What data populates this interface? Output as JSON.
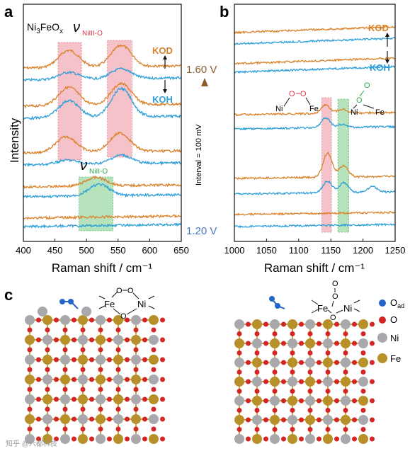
{
  "colors": {
    "kod": "#d9822b",
    "koh": "#2e9fd8",
    "red_band": "#e8909a",
    "green_band": "#7fd08a",
    "nickel": "#a9a9ad",
    "iron": "#b8902a",
    "oxygen": "#d42424",
    "oxygen_ad": "#2464c8",
    "arrow_top": "#8a5a2b",
    "arrow_bottom": "#4a77c8"
  },
  "panels": {
    "a": {
      "letter": "a",
      "sample_label": "Ni3FeOx",
      "nu_label_top": "ν",
      "nu_sub_top": "NiIII-O",
      "nu_label_bottom": "ν",
      "nu_sub_bottom": "NiII-O",
      "kod_label": "KOD",
      "koh_label": "KOH"
    },
    "b": {
      "letter": "b",
      "kod_label": "KOD",
      "koh_label": "KOH",
      "struct_left": {
        "ni": "Ni",
        "o1": "O",
        "o2": "O",
        "fe": "Fe"
      },
      "struct_right": {
        "ni": "Ni",
        "o1": "O",
        "o2": "O",
        "fe": "Fe"
      }
    },
    "c": {
      "letter": "c",
      "struct_left": {
        "fe": "Fe",
        "ni": "Ni",
        "o1": "O",
        "o2": "O",
        "o3": "O"
      },
      "struct_right": {
        "fe": "Fe",
        "ni": "Ni",
        "o1": "O",
        "o2": "O",
        "o3": "O"
      },
      "legend": [
        {
          "label": "Oad",
          "main": "O",
          "sub": "ad",
          "color_key": "oxygen_ad"
        },
        {
          "label": "O",
          "main": "O",
          "sub": "",
          "color_key": "oxygen"
        },
        {
          "label": "Ni",
          "main": "Ni",
          "sub": "",
          "color_key": "nickel"
        },
        {
          "label": "Fe",
          "main": "Fe",
          "sub": "",
          "color_key": "iron"
        }
      ]
    }
  },
  "middle": {
    "top_potential": "1.60 V",
    "bottom_potential": "1.20 V",
    "interval_label": "Interval = 100 mV"
  },
  "watermark": "知乎 @六都科技",
  "chart_data": [
    {
      "type": "line",
      "panel": "a",
      "xlabel": "Raman shift / cm⁻¹",
      "ylabel": "Intensity",
      "xlim": [
        400,
        650
      ],
      "xticks": [
        400,
        450,
        500,
        550,
        600,
        650
      ],
      "highlight_bands": [
        {
          "from": 455,
          "to": 492,
          "color": "red"
        },
        {
          "from": 533,
          "to": 572,
          "color": "red"
        },
        {
          "from": 488,
          "to": 542,
          "color": "green"
        }
      ],
      "series": [
        {
          "name": "KOD",
          "potential_V": 1.6,
          "shape": "double",
          "base": 96,
          "peaks": [
            [
              472,
              24
            ],
            [
              555,
              30
            ]
          ]
        },
        {
          "name": "KOH",
          "potential_V": 1.6,
          "shape": "double",
          "base": 113,
          "peaks": [
            [
              472,
              10
            ],
            [
              555,
              14
            ]
          ]
        },
        {
          "name": "KOD",
          "potential_V": 1.5,
          "shape": "double",
          "base": 150,
          "peaks": [
            [
              472,
              26
            ],
            [
              555,
              30
            ]
          ]
        },
        {
          "name": "KOH",
          "potential_V": 1.5,
          "shape": "double",
          "base": 167,
          "peaks": [
            [
              472,
              24
            ],
            [
              555,
              40
            ]
          ]
        },
        {
          "name": "KOD",
          "potential_V": 1.4,
          "shape": "double",
          "base": 216,
          "peaks": [
            [
              468,
              22
            ],
            [
              553,
              26
            ]
          ]
        },
        {
          "name": "KOH",
          "potential_V": 1.4,
          "shape": "double",
          "base": 233,
          "peaks": [
            [
              470,
              6
            ],
            [
              555,
              12
            ]
          ]
        },
        {
          "name": "KOD",
          "potential_V": 1.3,
          "shape": "single",
          "base": 264,
          "peaks": [
            [
              515,
              12
            ]
          ]
        },
        {
          "name": "KOH",
          "potential_V": 1.3,
          "shape": "single",
          "base": 278,
          "peaks": [
            [
              520,
              16
            ]
          ]
        },
        {
          "name": "KOD",
          "potential_V": 1.2,
          "shape": "flat",
          "base": 308,
          "peaks": []
        },
        {
          "name": "KOH",
          "potential_V": 1.2,
          "shape": "flat",
          "base": 320,
          "peaks": []
        }
      ]
    },
    {
      "type": "line",
      "panel": "b",
      "xlabel": "Raman shift / cm⁻¹",
      "xlim": [
        1000,
        1250
      ],
      "xticks": [
        1000,
        1050,
        1100,
        1150,
        1200,
        1250
      ],
      "highlight_bands": [
        {
          "from": 1136,
          "to": 1151,
          "color": "red"
        },
        {
          "from": 1161,
          "to": 1178,
          "color": "green"
        }
      ],
      "series": [
        {
          "name": "KOD",
          "potential_V": 1.6,
          "base": 46,
          "peaks": []
        },
        {
          "name": "KOH",
          "potential_V": 1.6,
          "base": 62,
          "peaks": []
        },
        {
          "name": "KOD",
          "potential_V": 1.5,
          "base": 90,
          "peaks": []
        },
        {
          "name": "KOH",
          "potential_V": 1.5,
          "base": 102,
          "peaks": []
        },
        {
          "name": "KOD",
          "potential_V": 1.4,
          "base": 162,
          "peaks": [
            [
              1142,
              12
            ],
            [
              1168,
              6
            ]
          ]
        },
        {
          "name": "KOH",
          "potential_V": 1.4,
          "base": 182,
          "peaks": [
            [
              1142,
              14
            ],
            [
              1168,
              4
            ]
          ]
        },
        {
          "name": "KOD",
          "potential_V": 1.3,
          "base": 252,
          "peaks": [
            [
              1145,
              34
            ],
            [
              1170,
              16
            ]
          ]
        },
        {
          "name": "KOH",
          "potential_V": 1.3,
          "base": 274,
          "peaks": [
            [
              1145,
              16
            ],
            [
              1170,
              14
            ],
            [
              1215,
              8
            ]
          ]
        },
        {
          "name": "KOD",
          "potential_V": 1.2,
          "base": 303,
          "peaks": []
        },
        {
          "name": "KOH",
          "potential_V": 1.2,
          "base": 320,
          "peaks": []
        }
      ]
    }
  ]
}
